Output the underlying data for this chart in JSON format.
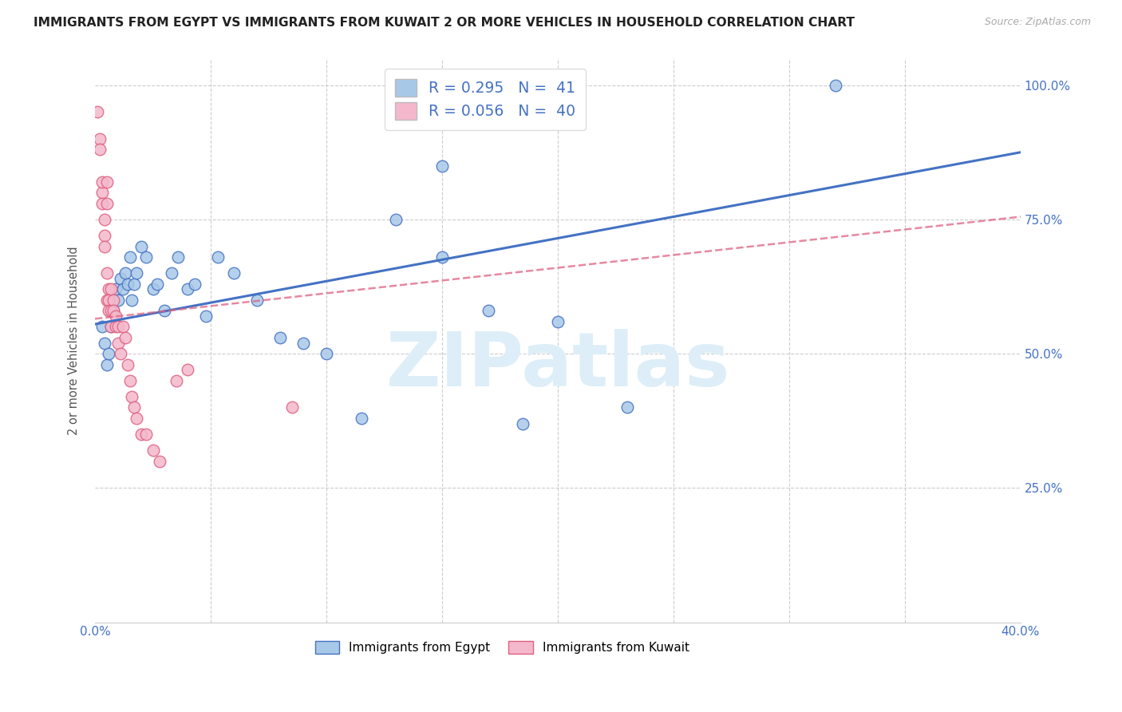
{
  "title": "IMMIGRANTS FROM EGYPT VS IMMIGRANTS FROM KUWAIT 2 OR MORE VEHICLES IN HOUSEHOLD CORRELATION CHART",
  "source": "Source: ZipAtlas.com",
  "ylabel": "2 or more Vehicles in Household",
  "xlim": [
    0.0,
    0.4
  ],
  "ylim": [
    0.0,
    1.05
  ],
  "egypt_R": 0.295,
  "egypt_N": 41,
  "kuwait_R": 0.056,
  "kuwait_N": 40,
  "egypt_color": "#a8c8e8",
  "egypt_edge_color": "#4472c4",
  "egypt_line_color": "#4472c4",
  "kuwait_color": "#f4b8cc",
  "kuwait_edge_color": "#e06080",
  "kuwait_line_color": "#e06080",
  "grid_color": "#cccccc",
  "egypt_x": [
    0.003,
    0.004,
    0.005,
    0.006,
    0.007,
    0.008,
    0.009,
    0.01,
    0.011,
    0.012,
    0.013,
    0.014,
    0.015,
    0.016,
    0.017,
    0.018,
    0.02,
    0.022,
    0.025,
    0.027,
    0.03,
    0.033,
    0.036,
    0.04,
    0.043,
    0.048,
    0.053,
    0.06,
    0.07,
    0.08,
    0.09,
    0.1,
    0.115,
    0.13,
    0.15,
    0.17,
    0.185,
    0.2,
    0.15,
    0.23,
    0.32
  ],
  "egypt_y": [
    0.55,
    0.52,
    0.48,
    0.5,
    0.55,
    0.58,
    0.62,
    0.6,
    0.64,
    0.62,
    0.65,
    0.63,
    0.68,
    0.6,
    0.63,
    0.65,
    0.7,
    0.68,
    0.62,
    0.63,
    0.58,
    0.65,
    0.68,
    0.62,
    0.63,
    0.57,
    0.68,
    0.65,
    0.6,
    0.53,
    0.52,
    0.5,
    0.38,
    0.75,
    0.68,
    0.58,
    0.37,
    0.56,
    0.85,
    0.4,
    1.0
  ],
  "kuwait_x": [
    0.001,
    0.002,
    0.002,
    0.003,
    0.003,
    0.003,
    0.004,
    0.004,
    0.004,
    0.005,
    0.005,
    0.005,
    0.005,
    0.006,
    0.006,
    0.006,
    0.007,
    0.007,
    0.007,
    0.008,
    0.008,
    0.009,
    0.009,
    0.01,
    0.01,
    0.011,
    0.012,
    0.013,
    0.014,
    0.015,
    0.016,
    0.017,
    0.018,
    0.02,
    0.022,
    0.025,
    0.028,
    0.035,
    0.04,
    0.085
  ],
  "kuwait_y": [
    0.95,
    0.9,
    0.88,
    0.8,
    0.82,
    0.78,
    0.75,
    0.72,
    0.7,
    0.82,
    0.78,
    0.65,
    0.6,
    0.62,
    0.6,
    0.58,
    0.62,
    0.58,
    0.55,
    0.6,
    0.58,
    0.57,
    0.55,
    0.55,
    0.52,
    0.5,
    0.55,
    0.53,
    0.48,
    0.45,
    0.42,
    0.4,
    0.38,
    0.35,
    0.35,
    0.32,
    0.3,
    0.45,
    0.47,
    0.4
  ],
  "ytick_positions": [
    0.25,
    0.5,
    0.75,
    1.0
  ],
  "ytick_labels": [
    "25.0%",
    "50.0%",
    "75.0%",
    "100.0%"
  ],
  "xtick_positions": [
    0.0,
    0.05,
    0.1,
    0.15,
    0.2,
    0.25,
    0.3,
    0.35,
    0.4
  ],
  "xtick_labels": [
    "0.0%",
    "",
    "",
    "",
    "",
    "",
    "",
    "",
    "40.0%"
  ]
}
